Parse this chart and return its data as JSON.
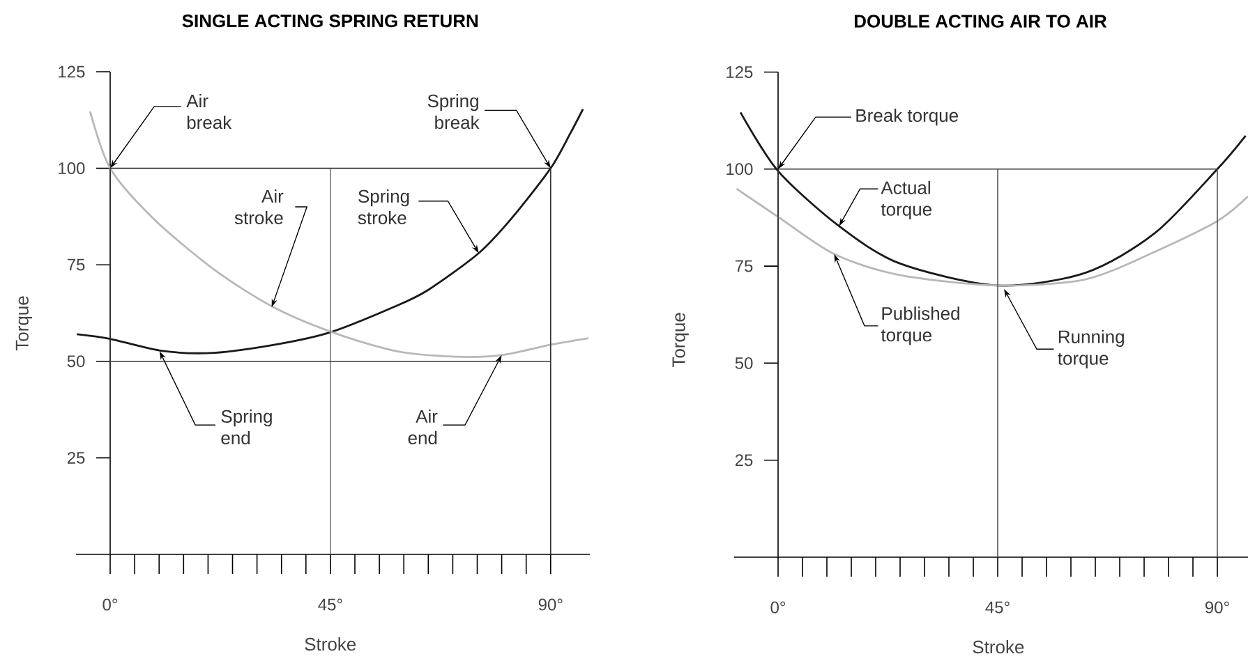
{
  "chart_data": [
    {
      "type": "line",
      "title": "SINGLE ACTING SPRING RETURN",
      "xlabel": "Stroke",
      "ylabel": "Torque",
      "xlim": [
        -7,
        98
      ],
      "ylim": [
        0,
        125
      ],
      "xticks": [
        {
          "value": 0,
          "label": "0°"
        },
        {
          "value": 5,
          "label": null
        },
        {
          "value": 10,
          "label": null
        },
        {
          "value": 15,
          "label": null
        },
        {
          "value": 20,
          "label": null
        },
        {
          "value": 25,
          "label": null
        },
        {
          "value": 30,
          "label": null
        },
        {
          "value": 35,
          "label": null
        },
        {
          "value": 40,
          "label": null
        },
        {
          "value": 45,
          "label": "45°"
        },
        {
          "value": 50,
          "label": null
        },
        {
          "value": 55,
          "label": null
        },
        {
          "value": 60,
          "label": null
        },
        {
          "value": 65,
          "label": null
        },
        {
          "value": 70,
          "label": null
        },
        {
          "value": 75,
          "label": null
        },
        {
          "value": 80,
          "label": null
        },
        {
          "value": 85,
          "label": null
        },
        {
          "value": 90,
          "label": "90°"
        }
      ],
      "yticks": [
        25,
        50,
        75,
        100,
        125
      ],
      "series": [
        {
          "color": "#1a1a1a",
          "x": [
            -6.8,
            0,
            10.7,
            21.2,
            34.5,
            45.2,
            58.2,
            65,
            75.3,
            82,
            90,
            94,
            96.6
          ],
          "values": [
            57,
            55.8,
            52.7,
            52.2,
            54.5,
            57.6,
            64.2,
            68.5,
            78,
            87,
            100,
            109,
            115.3
          ]
        },
        {
          "color": "#b8b8b8",
          "x": [
            -4.1,
            0,
            8.8,
            21.2,
            33.1,
            45.2,
            58.2,
            70.4,
            80,
            90,
            97.7
          ],
          "values": [
            114.7,
            100,
            87,
            73.8,
            64.2,
            57.6,
            52.7,
            51.2,
            51.6,
            54.3,
            56
          ]
        }
      ],
      "ref_lines": [
        {
          "axis": "x",
          "value": 0,
          "color": "#333333"
        },
        {
          "axis": "x",
          "value": 45,
          "color": "#777777"
        },
        {
          "axis": "x",
          "value": 90,
          "color": "#333333"
        },
        {
          "axis": "y",
          "value": 100,
          "color": "#333333"
        },
        {
          "axis": "y",
          "value": 50,
          "color": "#333333"
        }
      ],
      "annotations": [
        {
          "text": "Air break",
          "x": 0,
          "y": 100
        },
        {
          "text": "Spring break",
          "x": 90,
          "y": 100
        },
        {
          "text": "Air stroke",
          "x": 33,
          "y": 64
        },
        {
          "text": "Spring stroke",
          "x": 75.3,
          "y": 78
        },
        {
          "text": "Spring end",
          "x": 10.1,
          "y": 52.6
        },
        {
          "text": "Air end",
          "x": 80,
          "y": 51.6
        }
      ]
    },
    {
      "type": "line",
      "title": "DOUBLE ACTING AIR TO AIR",
      "xlabel": "Stroke",
      "ylabel": "Torque",
      "xlim": [
        -9,
        96.5
      ],
      "ylim": [
        0,
        125
      ],
      "xticks": [
        {
          "value": 0,
          "label": "0°"
        },
        {
          "value": 5,
          "label": null
        },
        {
          "value": 10,
          "label": null
        },
        {
          "value": 15,
          "label": null
        },
        {
          "value": 20,
          "label": null
        },
        {
          "value": 25,
          "label": null
        },
        {
          "value": 30,
          "label": null
        },
        {
          "value": 35,
          "label": null
        },
        {
          "value": 40,
          "label": null
        },
        {
          "value": 45,
          "label": "45°"
        },
        {
          "value": 50,
          "label": null
        },
        {
          "value": 55,
          "label": null
        },
        {
          "value": 60,
          "label": null
        },
        {
          "value": 65,
          "label": null
        },
        {
          "value": 70,
          "label": null
        },
        {
          "value": 75,
          "label": null
        },
        {
          "value": 80,
          "label": null
        },
        {
          "value": 85,
          "label": null
        },
        {
          "value": 90,
          "label": "90°"
        }
      ],
      "yticks": [
        25,
        50,
        75,
        100,
        125
      ],
      "series": [
        {
          "color": "#1a1a1a",
          "x": [
            -7.7,
            0,
            12.5,
            24.9,
            45,
            63,
            77.2,
            90,
            95.8
          ],
          "values": [
            114.6,
            99.5,
            85.3,
            75.7,
            70,
            73.3,
            83.5,
            100,
            108.6
          ]
        },
        {
          "color": "#b8b8b8",
          "x": [
            -8.5,
            0,
            11.5,
            24.9,
            45,
            63,
            77.2,
            90,
            96.3
          ],
          "values": [
            94.9,
            87.7,
            78.1,
            72.7,
            70,
            71.6,
            78.7,
            86.6,
            93
          ]
        }
      ],
      "ref_lines": [
        {
          "axis": "x",
          "value": 0,
          "color": "#333333"
        },
        {
          "axis": "x",
          "value": 45,
          "color": "#555555"
        },
        {
          "axis": "x",
          "value": 90,
          "color": "#555555"
        },
        {
          "axis": "y",
          "value": 100,
          "color": "#333333"
        }
      ],
      "annotations": [
        {
          "text": "Break torque",
          "x": 0,
          "y": 100
        },
        {
          "text": "Actual torque",
          "x": 12.5,
          "y": 85.3
        },
        {
          "text": "Published torque",
          "x": 11.5,
          "y": 78.1
        },
        {
          "text": "Running torque",
          "x": 46.3,
          "y": 69.1
        }
      ]
    }
  ]
}
